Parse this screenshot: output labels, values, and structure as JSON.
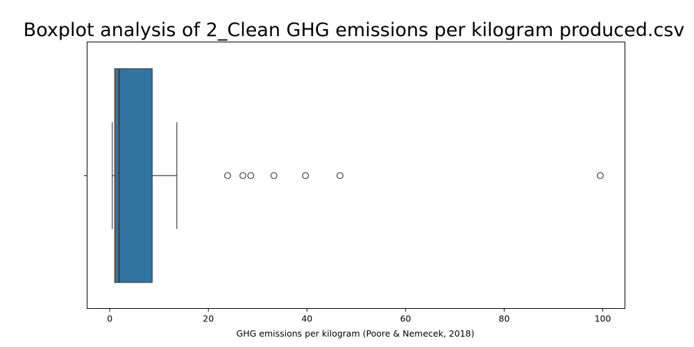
{
  "chart_data": {
    "type": "boxplot",
    "title": "Boxplot analysis of 2_Clean GHG emissions per kilogram produced.csv",
    "xlabel": "GHG emissions per kilogram (Poore & Nemecek, 2018)",
    "ylabel": "",
    "orientation": "horizontal",
    "xlim": [
      -4.6,
      104.5
    ],
    "xticks": [
      0,
      20,
      40,
      60,
      80,
      100
    ],
    "xtick_labels": [
      "0",
      "20",
      "40",
      "60",
      "80",
      "100"
    ],
    "grid": false,
    "box": {
      "whisker_low": 0.5,
      "q1": 1.0,
      "median": 1.9,
      "q3": 8.6,
      "whisker_high": 13.6
    },
    "outliers": [
      23.9,
      27.0,
      28.6,
      33.3,
      39.7,
      46.7,
      99.5
    ],
    "colors": {
      "box_fill": "#3274a1",
      "line": "#3f3f3f",
      "axis": "#000000"
    }
  }
}
